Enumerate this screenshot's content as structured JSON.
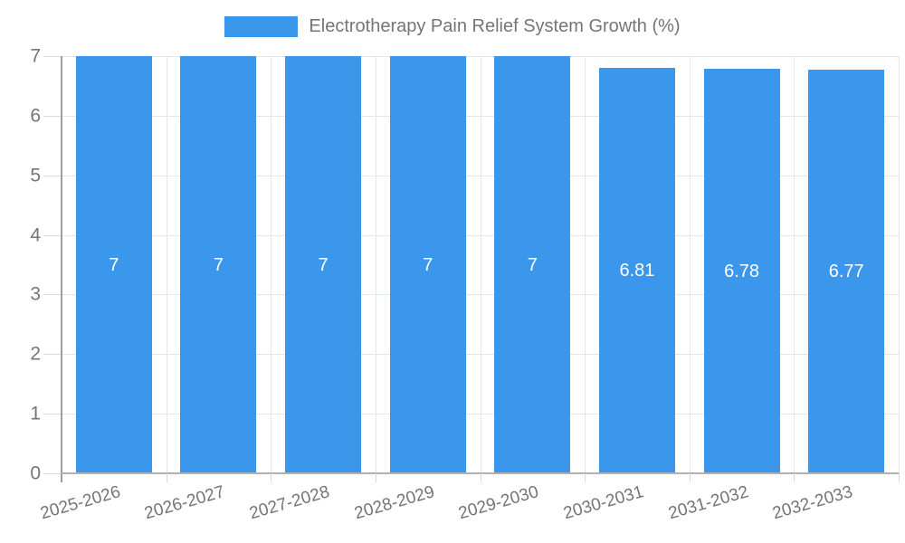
{
  "chart_data": {
    "type": "bar",
    "title": "Electrotherapy Pain Relief System Growth (%)",
    "categories": [
      "2025-2026",
      "2026-2027",
      "2027-2028",
      "2028-2029",
      "2029-2030",
      "2030-2031",
      "2031-2032",
      "2032-2033"
    ],
    "values": [
      7,
      7,
      7,
      7,
      7,
      6.81,
      6.78,
      6.77
    ],
    "value_labels": [
      "7",
      "7",
      "7",
      "7",
      "7",
      "6.81",
      "6.78",
      "6.77"
    ],
    "xlabel": "",
    "ylabel": "",
    "ylim": [
      0,
      7
    ],
    "yticks": [
      0,
      1,
      2,
      3,
      4,
      5,
      6,
      7
    ],
    "grid": true,
    "legend_position": "top-center",
    "colors": {
      "bar": "#3b97ec",
      "value_label": "#ffffff",
      "axis_text": "#757575",
      "gridline": "#e6e6e6",
      "tick_dash": "#d9d9d9",
      "y_axis_line": "#9e9e9e",
      "baseline": "#b1b1b1",
      "background": "#ffffff"
    }
  }
}
